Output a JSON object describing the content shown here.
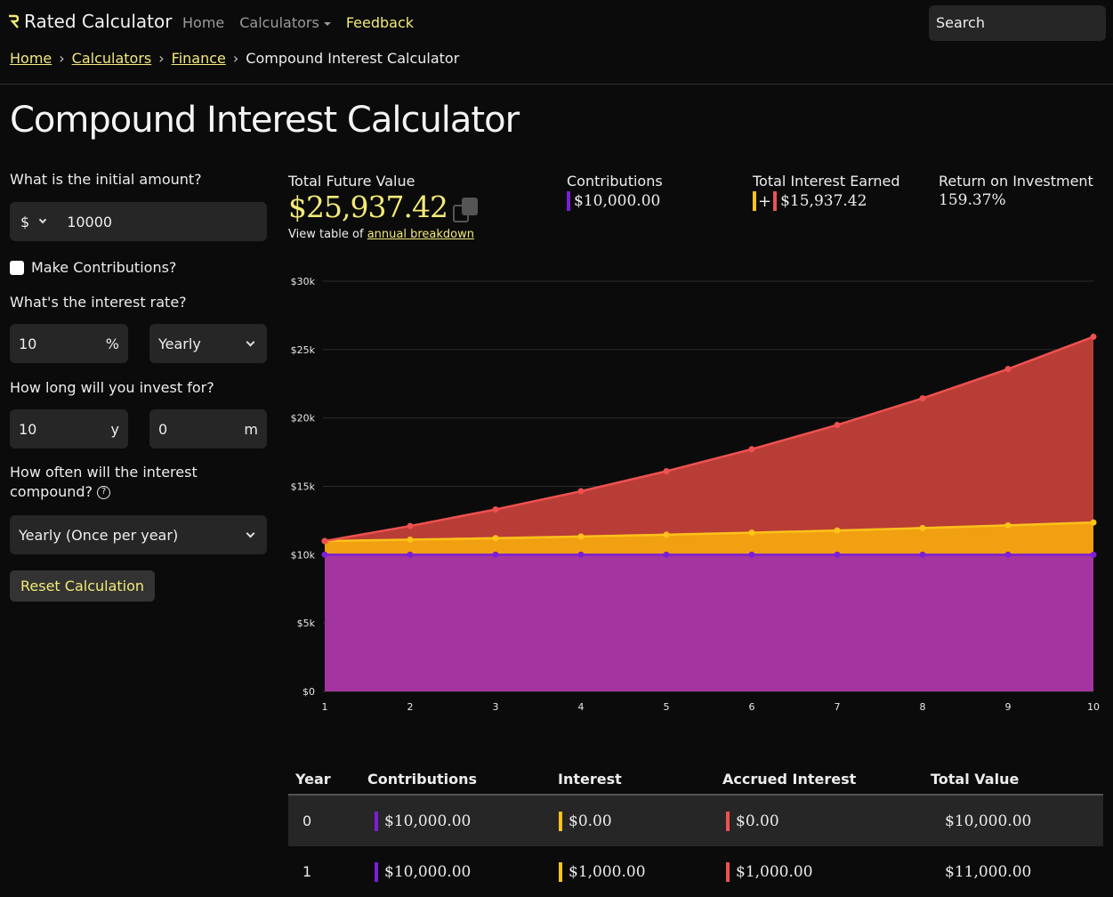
{
  "nav": {
    "brand": "Rated Calculator",
    "links": {
      "home": "Home",
      "calculators": "Calculators",
      "feedback": "Feedback"
    },
    "search_placeholder": "Search"
  },
  "breadcrumb": {
    "home": "Home",
    "calculators": "Calculators",
    "finance": "Finance",
    "current": "Compound Interest Calculator",
    "separator": "›"
  },
  "page_title": "Compound Interest Calculator",
  "form": {
    "initial_label": "What is the initial amount?",
    "currency": "$",
    "initial_value": "10000",
    "contributions_label": "Make Contributions?",
    "rate_label": "What's the interest rate?",
    "rate_value": "10",
    "rate_unit": "%",
    "rate_period": "Yearly",
    "duration_label": "How long will you invest for?",
    "years_value": "10",
    "years_unit": "y",
    "months_value": "0",
    "months_unit": "m",
    "compound_label": "How often will the interest compound?",
    "compound_value": "Yearly (Once per year)",
    "reset_label": "Reset Calculation"
  },
  "summary": {
    "future_label": "Total Future Value",
    "future_value": "$25,937.42",
    "view_table_text": "View table of",
    "view_table_link": "annual breakdown",
    "contributions_label": "Contributions",
    "contributions_value": "$10,000.00",
    "interest_label": "Total Interest Earned",
    "interest_value": "$15,937.42",
    "roi_label": "Return on Investment",
    "roi_value": "159.37%"
  },
  "colors": {
    "accent": "#f2e979",
    "contributions": "#a435a0",
    "contributions_line": "#7b1fd6",
    "interest": "#f0a010",
    "interest_line": "#ffc21a",
    "accrued": "#b83d36",
    "accrued_line": "#ef5150"
  },
  "chart_data": {
    "type": "area",
    "x": [
      1,
      2,
      3,
      4,
      5,
      6,
      7,
      8,
      9,
      10
    ],
    "series": [
      {
        "values": [
          10000,
          10000,
          10000,
          10000,
          10000,
          10000,
          10000,
          10000,
          10000,
          10000
        ]
      },
      {
        "values": [
          11000,
          11100,
          11210,
          11331,
          11464,
          11611,
          11772,
          11949,
          12144,
          12358
        ]
      },
      {
        "values": [
          11000,
          12100,
          13310,
          14641,
          16105,
          17716,
          19487,
          21436,
          23579,
          25937
        ]
      }
    ],
    "y_ticks": [
      "$0",
      "$5k",
      "$10k",
      "$15k",
      "$20k",
      "$25k",
      "$30k"
    ],
    "x_ticks": [
      "1",
      "2",
      "3",
      "4",
      "5",
      "6",
      "7",
      "8",
      "9",
      "10"
    ],
    "ylim": [
      0,
      30000
    ],
    "grid": true
  },
  "table": {
    "headers": [
      "Year",
      "Contributions",
      "Interest",
      "Accrued Interest",
      "Total Value"
    ],
    "rows": [
      [
        "0",
        "$10,000.00",
        "$0.00",
        "$0.00",
        "$10,000.00"
      ],
      [
        "1",
        "$10,000.00",
        "$1,000.00",
        "$1,000.00",
        "$11,000.00"
      ]
    ]
  }
}
